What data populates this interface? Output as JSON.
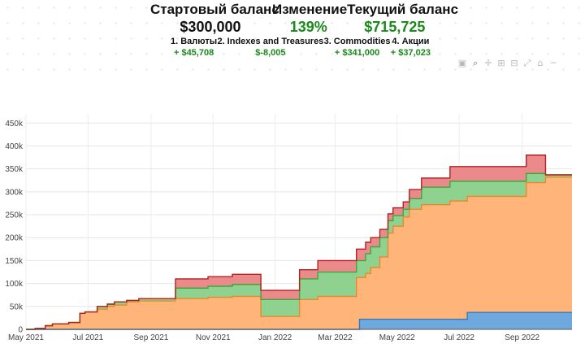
{
  "header": {
    "start_label": "Стартовый баланс",
    "start_value": "$300,000",
    "change_label": "Изменение",
    "change_value": "139%",
    "current_label": "Текущий баланс",
    "current_value": "$715,725"
  },
  "segments": [
    {
      "name": "1. Валюты",
      "value": "+ $45,708"
    },
    {
      "name": "2. Indexes and Treasures",
      "value": "$-8,005"
    },
    {
      "name": "3. Commodities",
      "value": "+ $341,000"
    },
    {
      "name": "4. Акции",
      "value": "+ $37,023"
    }
  ],
  "toolbar": [
    "camera-icon",
    "zoom-icon",
    "pan-icon",
    "zoom-in-icon",
    "zoom-out-icon",
    "autoscale-icon",
    "reset-axes-icon",
    "spike-lines-icon"
  ],
  "colors": {
    "blue": "#6fa8dc",
    "orange": "#ffb47a",
    "green": "#8fd18f",
    "red": "#ea8a8a",
    "blue_line": "#3a78b8",
    "orange_line": "#e8892f",
    "green_line": "#3fa63f",
    "red_line": "#b22222"
  },
  "chart_data": {
    "type": "area",
    "stacked": true,
    "x_ticks": [
      "May 2021",
      "Jul 2021",
      "Sep 2021",
      "Nov 2021",
      "Jan 2022",
      "Mar 2022",
      "May 2022",
      "Jul 2022",
      "Sep 2022"
    ],
    "y_ticks": [
      "0",
      "50k",
      "100k",
      "150k",
      "200k",
      "250k",
      "300k",
      "350k",
      "400k",
      "450k"
    ],
    "ylim": [
      0,
      470000
    ],
    "xlim": [
      "2021-05-01",
      "2022-10-20"
    ],
    "grid": true,
    "series": [
      {
        "color_key": "blue",
        "points": [
          [
            "2021-05-01",
            0
          ],
          [
            "2022-03-25",
            0
          ],
          [
            "2022-03-25",
            22000
          ],
          [
            "2022-07-09",
            22000
          ],
          [
            "2022-07-09",
            37000
          ],
          [
            "2022-10-20",
            37000
          ]
        ]
      },
      {
        "color_key": "orange",
        "points": [
          [
            "2021-05-01",
            0
          ],
          [
            "2021-05-10",
            0
          ],
          [
            "2021-05-10",
            2000
          ],
          [
            "2021-05-20",
            2000
          ],
          [
            "2021-05-20",
            8000
          ],
          [
            "2021-05-27",
            8000
          ],
          [
            "2021-05-27",
            12000
          ],
          [
            "2021-06-12",
            12000
          ],
          [
            "2021-06-12",
            15000
          ],
          [
            "2021-06-23",
            15000
          ],
          [
            "2021-06-23",
            35000
          ],
          [
            "2021-06-28",
            35000
          ],
          [
            "2021-06-28",
            38000
          ],
          [
            "2021-07-10",
            38000
          ],
          [
            "2021-07-10",
            44000
          ],
          [
            "2021-07-20",
            44000
          ],
          [
            "2021-07-20",
            50000
          ],
          [
            "2021-07-27",
            50000
          ],
          [
            "2021-07-27",
            53000
          ],
          [
            "2021-08-08",
            53000
          ],
          [
            "2021-08-08",
            60000
          ],
          [
            "2021-08-20",
            60000
          ],
          [
            "2021-08-20",
            62000
          ],
          [
            "2021-09-25",
            62000
          ],
          [
            "2021-09-25",
            67000
          ],
          [
            "2021-10-27",
            67000
          ],
          [
            "2021-10-27",
            70000
          ],
          [
            "2021-11-20",
            70000
          ],
          [
            "2021-11-20",
            72000
          ],
          [
            "2021-12-18",
            72000
          ],
          [
            "2021-12-18",
            28000
          ],
          [
            "2022-01-25",
            28000
          ],
          [
            "2022-01-25",
            65000
          ],
          [
            "2022-02-12",
            65000
          ],
          [
            "2022-02-12",
            72000
          ],
          [
            "2022-03-22",
            72000
          ],
          [
            "2022-03-22",
            113000
          ],
          [
            "2022-03-31",
            113000
          ],
          [
            "2022-03-31",
            122000
          ],
          [
            "2022-04-05",
            122000
          ],
          [
            "2022-04-05",
            135000
          ],
          [
            "2022-04-14",
            135000
          ],
          [
            "2022-04-14",
            158000
          ],
          [
            "2022-04-22",
            158000
          ],
          [
            "2022-04-22",
            210000
          ],
          [
            "2022-04-27",
            210000
          ],
          [
            "2022-04-27",
            225000
          ],
          [
            "2022-05-07",
            225000
          ],
          [
            "2022-05-07",
            245000
          ],
          [
            "2022-05-13",
            245000
          ],
          [
            "2022-05-13",
            262000
          ],
          [
            "2022-05-25",
            262000
          ],
          [
            "2022-05-25",
            272000
          ],
          [
            "2022-06-22",
            272000
          ],
          [
            "2022-06-22",
            280000
          ],
          [
            "2022-07-09",
            280000
          ],
          [
            "2022-07-09",
            290000
          ],
          [
            "2022-09-05",
            290000
          ],
          [
            "2022-09-05",
            320000
          ],
          [
            "2022-09-24",
            320000
          ],
          [
            "2022-09-24",
            332000
          ],
          [
            "2022-10-20",
            332000
          ]
        ]
      },
      {
        "color_key": "green",
        "points": [
          [
            "2021-05-01",
            0
          ],
          [
            "2021-05-10",
            0
          ],
          [
            "2021-05-10",
            2000
          ],
          [
            "2021-05-20",
            2000
          ],
          [
            "2021-05-20",
            8000
          ],
          [
            "2021-05-27",
            8000
          ],
          [
            "2021-05-27",
            12000
          ],
          [
            "2021-06-12",
            12000
          ],
          [
            "2021-06-12",
            15000
          ],
          [
            "2021-06-23",
            15000
          ],
          [
            "2021-06-23",
            35000
          ],
          [
            "2021-06-28",
            35000
          ],
          [
            "2021-06-28",
            38000
          ],
          [
            "2021-07-10",
            38000
          ],
          [
            "2021-07-10",
            50000
          ],
          [
            "2021-07-20",
            50000
          ],
          [
            "2021-07-20",
            55000
          ],
          [
            "2021-07-27",
            55000
          ],
          [
            "2021-07-27",
            60000
          ],
          [
            "2021-08-08",
            60000
          ],
          [
            "2021-08-08",
            63000
          ],
          [
            "2021-08-20",
            63000
          ],
          [
            "2021-08-20",
            67000
          ],
          [
            "2021-09-25",
            67000
          ],
          [
            "2021-09-25",
            90000
          ],
          [
            "2021-10-27",
            90000
          ],
          [
            "2021-10-27",
            94000
          ],
          [
            "2021-11-20",
            94000
          ],
          [
            "2021-11-20",
            98000
          ],
          [
            "2021-12-18",
            98000
          ],
          [
            "2021-12-18",
            65000
          ],
          [
            "2022-01-25",
            65000
          ],
          [
            "2022-01-25",
            110000
          ],
          [
            "2022-02-12",
            110000
          ],
          [
            "2022-02-12",
            125000
          ],
          [
            "2022-03-22",
            125000
          ],
          [
            "2022-03-22",
            150000
          ],
          [
            "2022-03-31",
            150000
          ],
          [
            "2022-03-31",
            165000
          ],
          [
            "2022-04-05",
            165000
          ],
          [
            "2022-04-05",
            180000
          ],
          [
            "2022-04-14",
            180000
          ],
          [
            "2022-04-14",
            200000
          ],
          [
            "2022-04-22",
            200000
          ],
          [
            "2022-04-22",
            237000
          ],
          [
            "2022-04-27",
            237000
          ],
          [
            "2022-04-27",
            248000
          ],
          [
            "2022-05-07",
            248000
          ],
          [
            "2022-05-07",
            262000
          ],
          [
            "2022-05-13",
            262000
          ],
          [
            "2022-05-13",
            285000
          ],
          [
            "2022-05-25",
            285000
          ],
          [
            "2022-05-25",
            310000
          ],
          [
            "2022-06-22",
            310000
          ],
          [
            "2022-06-22",
            323000
          ],
          [
            "2022-07-09",
            323000
          ],
          [
            "2022-07-09",
            323000
          ],
          [
            "2022-09-05",
            323000
          ],
          [
            "2022-09-05",
            340000
          ],
          [
            "2022-09-24",
            340000
          ],
          [
            "2022-09-24",
            337000
          ],
          [
            "2022-10-20",
            337000
          ]
        ]
      },
      {
        "color_key": "red",
        "points": [
          [
            "2021-05-01",
            0
          ],
          [
            "2021-05-10",
            0
          ],
          [
            "2021-05-10",
            2000
          ],
          [
            "2021-05-20",
            2000
          ],
          [
            "2021-05-20",
            8000
          ],
          [
            "2021-05-27",
            8000
          ],
          [
            "2021-05-27",
            12000
          ],
          [
            "2021-06-12",
            12000
          ],
          [
            "2021-06-12",
            15000
          ],
          [
            "2021-06-23",
            15000
          ],
          [
            "2021-06-23",
            35000
          ],
          [
            "2021-06-28",
            35000
          ],
          [
            "2021-06-28",
            38000
          ],
          [
            "2021-07-10",
            38000
          ],
          [
            "2021-07-10",
            50000
          ],
          [
            "2021-07-20",
            50000
          ],
          [
            "2021-07-20",
            55000
          ],
          [
            "2021-07-27",
            55000
          ],
          [
            "2021-07-27",
            60000
          ],
          [
            "2021-08-08",
            60000
          ],
          [
            "2021-08-08",
            63000
          ],
          [
            "2021-08-20",
            63000
          ],
          [
            "2021-08-20",
            67000
          ],
          [
            "2021-09-25",
            67000
          ],
          [
            "2021-09-25",
            110000
          ],
          [
            "2021-10-27",
            110000
          ],
          [
            "2021-10-27",
            115000
          ],
          [
            "2021-11-20",
            115000
          ],
          [
            "2021-11-20",
            120000
          ],
          [
            "2021-12-18",
            120000
          ],
          [
            "2021-12-18",
            85000
          ],
          [
            "2022-01-25",
            85000
          ],
          [
            "2022-01-25",
            130000
          ],
          [
            "2022-02-12",
            130000
          ],
          [
            "2022-02-12",
            150000
          ],
          [
            "2022-03-22",
            150000
          ],
          [
            "2022-03-22",
            175000
          ],
          [
            "2022-03-31",
            175000
          ],
          [
            "2022-03-31",
            190000
          ],
          [
            "2022-04-05",
            190000
          ],
          [
            "2022-04-05",
            200000
          ],
          [
            "2022-04-14",
            200000
          ],
          [
            "2022-04-14",
            218000
          ],
          [
            "2022-04-22",
            218000
          ],
          [
            "2022-04-22",
            252000
          ],
          [
            "2022-04-27",
            252000
          ],
          [
            "2022-04-27",
            265000
          ],
          [
            "2022-05-07",
            265000
          ],
          [
            "2022-05-07",
            278000
          ],
          [
            "2022-05-13",
            278000
          ],
          [
            "2022-05-13",
            305000
          ],
          [
            "2022-05-25",
            305000
          ],
          [
            "2022-05-25",
            330000
          ],
          [
            "2022-06-22",
            330000
          ],
          [
            "2022-06-22",
            355000
          ],
          [
            "2022-07-09",
            355000
          ],
          [
            "2022-07-09",
            355000
          ],
          [
            "2022-09-05",
            355000
          ],
          [
            "2022-09-05",
            380000
          ],
          [
            "2022-09-24",
            380000
          ],
          [
            "2022-09-24",
            337000
          ],
          [
            "2022-10-20",
            337000
          ]
        ]
      }
    ]
  }
}
